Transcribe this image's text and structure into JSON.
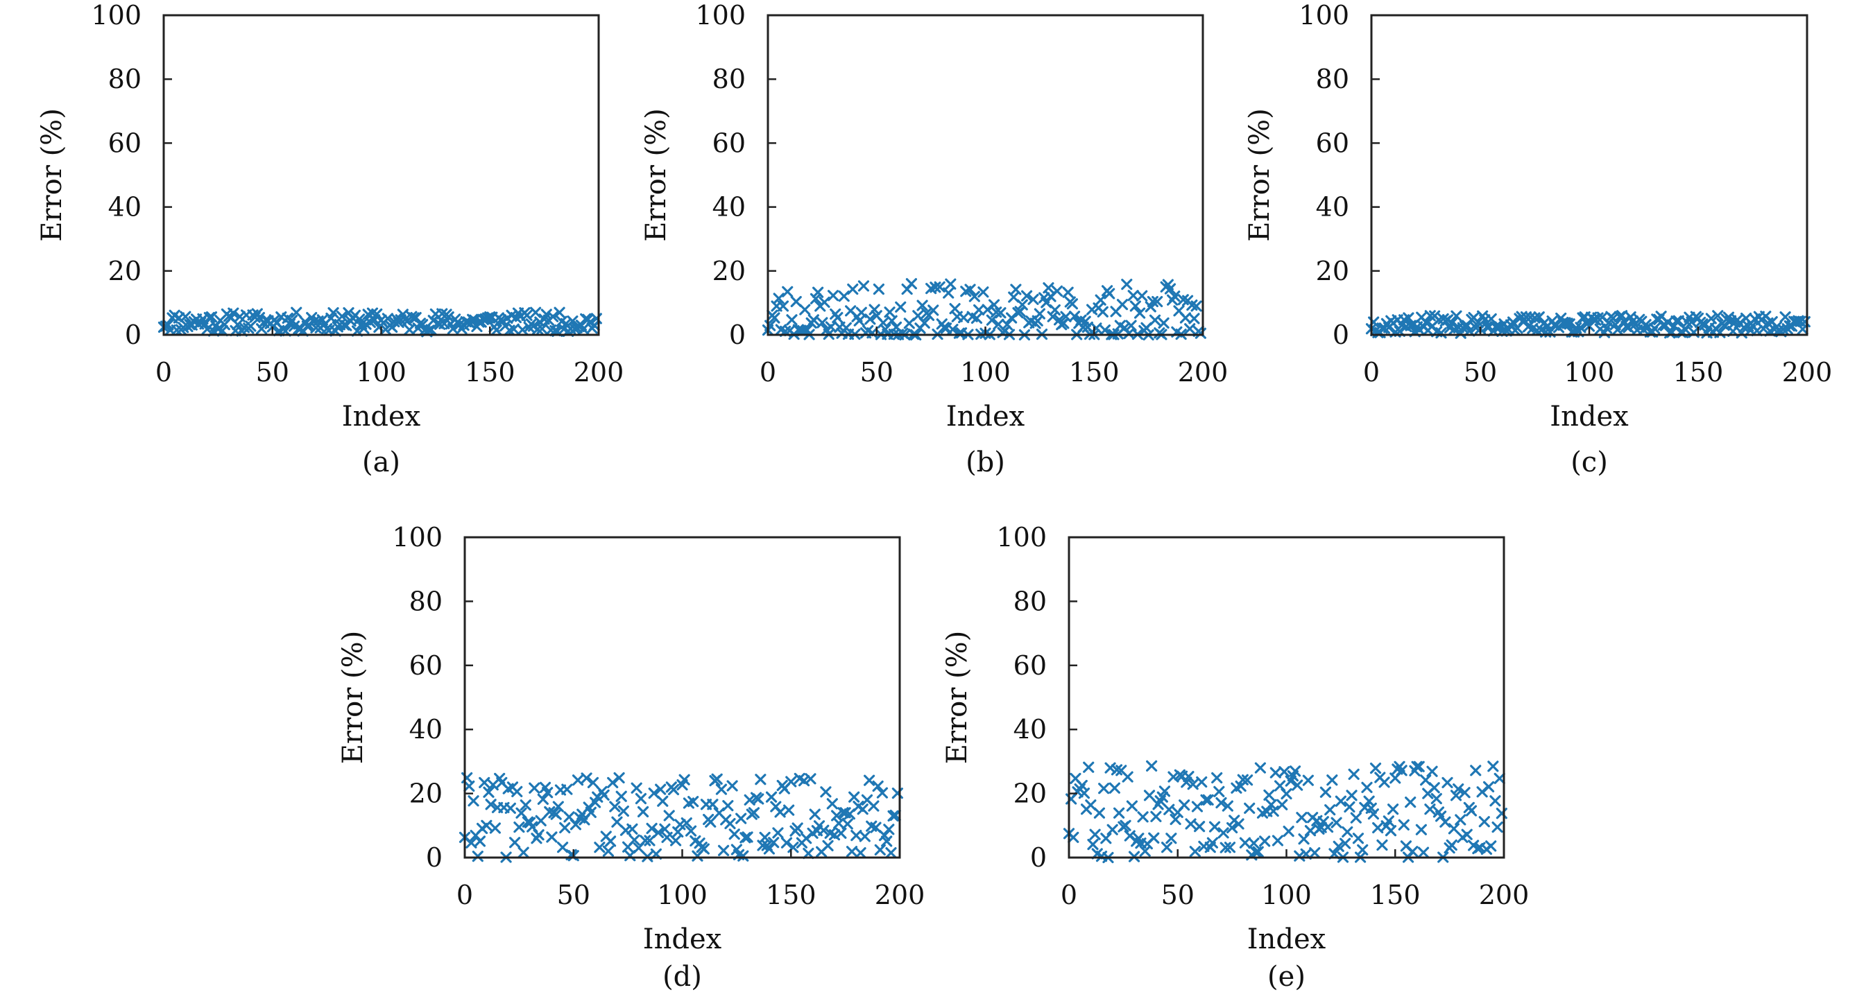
{
  "figure": {
    "marker_color": "#1f77b4",
    "marker_symbol": "x",
    "panels": [
      "a",
      "b",
      "c",
      "d",
      "e"
    ]
  },
  "chart_data": [
    {
      "id": "a",
      "type": "scatter",
      "caption": "(a)",
      "xlabel": "Index",
      "ylabel": "Error (%)",
      "xlim": [
        0,
        200
      ],
      "ylim": [
        0,
        100
      ],
      "xticks": [
        0,
        50,
        100,
        150,
        200
      ],
      "yticks": [
        0,
        20,
        40,
        60,
        80,
        100
      ],
      "grid": false,
      "n_points": 200,
      "value_range": [
        1,
        7
      ],
      "points": []
    },
    {
      "id": "b",
      "type": "scatter",
      "caption": "(b)",
      "xlabel": "Index",
      "ylabel": "Error (%)",
      "xlim": [
        0,
        200
      ],
      "ylim": [
        0,
        100
      ],
      "xticks": [
        0,
        50,
        100,
        150,
        200
      ],
      "yticks": [
        0,
        20,
        40,
        60,
        80,
        100
      ],
      "grid": false,
      "n_points": 200,
      "value_range": [
        0,
        16
      ],
      "points": []
    },
    {
      "id": "c",
      "type": "scatter",
      "caption": "(c)",
      "xlabel": "Index",
      "ylabel": "Error (%)",
      "xlim": [
        0,
        200
      ],
      "ylim": [
        0,
        100
      ],
      "xticks": [
        0,
        50,
        100,
        150,
        200
      ],
      "yticks": [
        0,
        20,
        40,
        60,
        80,
        100
      ],
      "grid": false,
      "n_points": 200,
      "value_range": [
        0.5,
        6
      ],
      "points": []
    },
    {
      "id": "d",
      "type": "scatter",
      "caption": "(d)",
      "xlabel": "Index",
      "ylabel": "Error (%)",
      "xlim": [
        0,
        200
      ],
      "ylim": [
        0,
        100
      ],
      "xticks": [
        0,
        50,
        100,
        150,
        200
      ],
      "yticks": [
        0,
        20,
        40,
        60,
        80,
        100
      ],
      "grid": false,
      "n_points": 200,
      "value_range": [
        0,
        25
      ],
      "points": []
    },
    {
      "id": "e",
      "type": "scatter",
      "caption": "(e)",
      "xlabel": "Index",
      "ylabel": "Error (%)",
      "xlim": [
        0,
        200
      ],
      "ylim": [
        0,
        100
      ],
      "xticks": [
        0,
        50,
        100,
        150,
        200
      ],
      "yticks": [
        0,
        20,
        40,
        60,
        80,
        100
      ],
      "grid": false,
      "n_points": 200,
      "value_range": [
        0,
        29
      ],
      "points": []
    }
  ]
}
